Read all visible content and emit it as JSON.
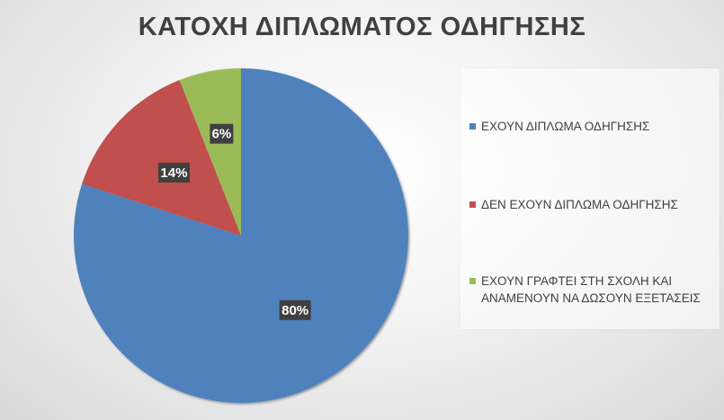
{
  "chart_data": {
    "type": "pie",
    "title": "ΚΑΤΟΧΗ ΔΙΠΛΩΜΑΤΟΣ ΟΔΗΓΗΣΗΣ",
    "categories": [
      "ΕΧΟΥΝ ΔΙΠΛΩΜΑ ΟΔΗΓΗΣΗΣ",
      "ΔΕΝ ΕΧΟΥΝ ΔΙΠΛΩΜΑ ΟΔΗΓΗΣΗΣ",
      "ΕΧΟΥΝ ΓΡΑΦΤΕΙ ΣΤΗ ΣΧΟΛΗ ΚΑΙ ΑΝΑΜΕΝΟΥΝ ΝΑ ΔΩΣΟΥΝ ΕΞΕΤΑΣΕΙΣ"
    ],
    "values": [
      80,
      14,
      6
    ],
    "data_labels": [
      "80%",
      "14%",
      "6%"
    ],
    "colors": [
      "#4F81BD",
      "#C0504D",
      "#9BBB59"
    ],
    "legend_position": "right"
  }
}
